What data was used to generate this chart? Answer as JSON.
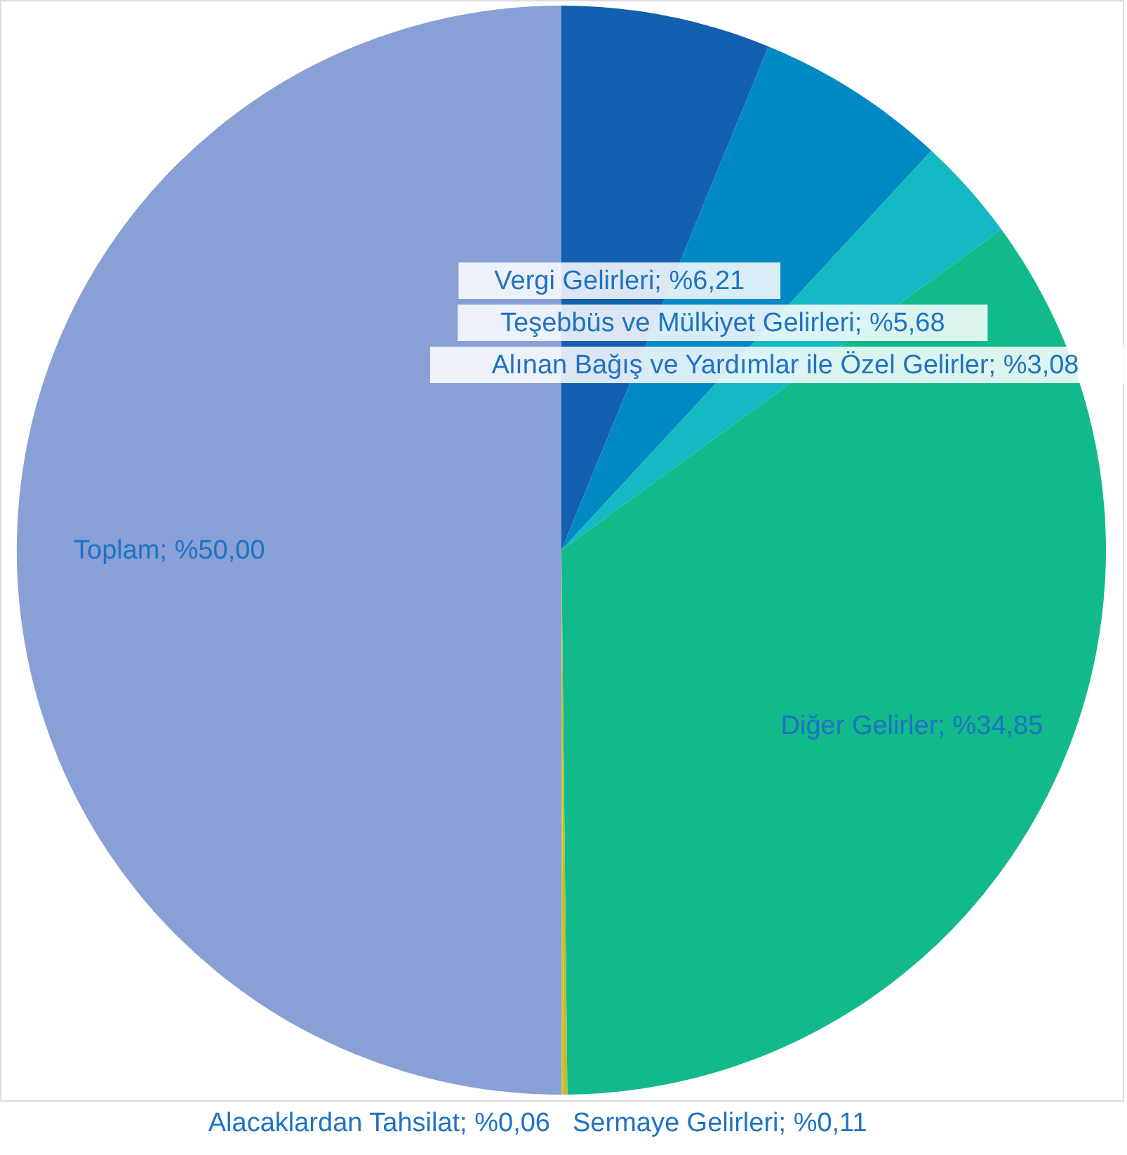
{
  "chart_data": {
    "type": "pie",
    "categories": [
      "Vergi Gelirleri",
      "Teşebbüs ve Mülkiyet Gelirleri",
      "Alınan Bağış ve Yardımlar ile Özel Gelirler",
      "Diğer Gelirler",
      "Sermaye Gelirleri",
      "Alacaklardan Tahsilat",
      "Toplam"
    ],
    "values": [
      6.21,
      5.68,
      3.08,
      34.85,
      0.11,
      0.06,
      50.0
    ],
    "value_labels": [
      "%6,21",
      "%5,68",
      "%3,08",
      "%34,85",
      "%0,11",
      "%0,06",
      "%50,00"
    ],
    "colors": [
      "#1460b0",
      "#0089c2",
      "#12b9c3",
      "#12b98a",
      "#b8c030",
      "#e0c020",
      "#88a0d6"
    ]
  }
}
